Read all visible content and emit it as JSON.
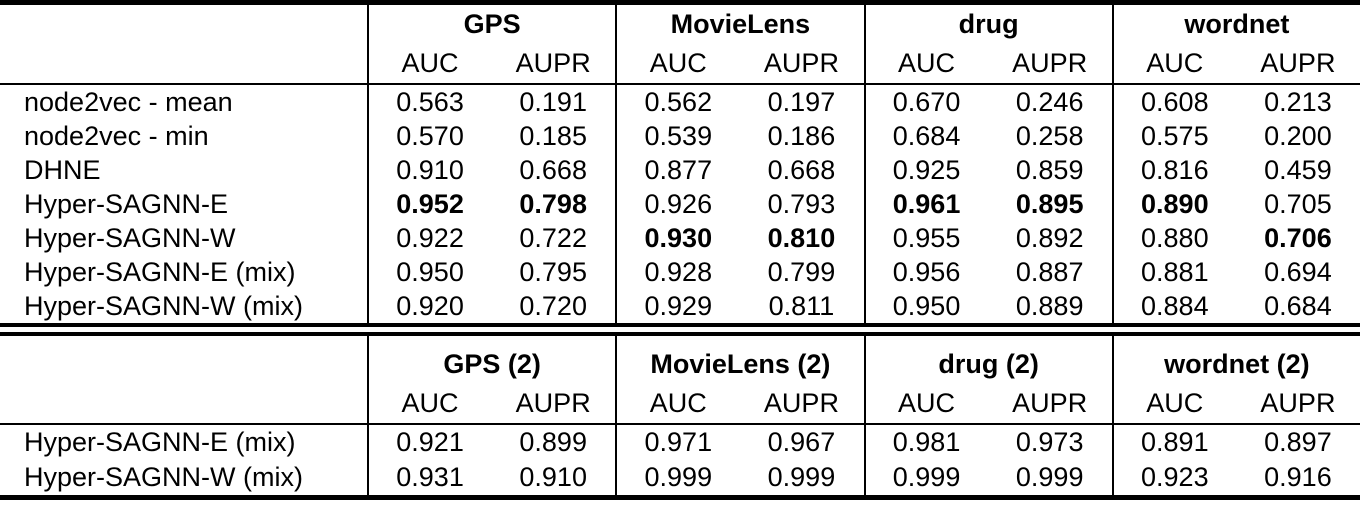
{
  "page": {
    "background": "#ffffff",
    "text_color": "#000000",
    "rule_color": "#000000"
  },
  "tables": [
    {
      "title": "results-table-single",
      "column_groups": [
        "GPS",
        "MovieLens",
        "drug",
        "wordnet"
      ],
      "metric_labels": [
        "AUC",
        "AUPR"
      ],
      "rows": [
        {
          "method": "node2vec - mean",
          "values": [
            "0.563",
            "0.191",
            "0.562",
            "0.197",
            "0.670",
            "0.246",
            "0.608",
            "0.213"
          ],
          "bold": [
            false,
            false,
            false,
            false,
            false,
            false,
            false,
            false
          ]
        },
        {
          "method": "node2vec - min",
          "values": [
            "0.570",
            "0.185",
            "0.539",
            "0.186",
            "0.684",
            "0.258",
            "0.575",
            "0.200"
          ],
          "bold": [
            false,
            false,
            false,
            false,
            false,
            false,
            false,
            false
          ]
        },
        {
          "method": "DHNE",
          "values": [
            "0.910",
            "0.668",
            "0.877",
            "0.668",
            "0.925",
            "0.859",
            "0.816",
            "0.459"
          ],
          "bold": [
            false,
            false,
            false,
            false,
            false,
            false,
            false,
            false
          ]
        },
        {
          "method": "Hyper-SAGNN-E",
          "values": [
            "0.952",
            "0.798",
            "0.926",
            "0.793",
            "0.961",
            "0.895",
            "0.890",
            "0.705"
          ],
          "bold": [
            true,
            true,
            false,
            false,
            true,
            true,
            true,
            false
          ]
        },
        {
          "method": "Hyper-SAGNN-W",
          "values": [
            "0.922",
            "0.722",
            "0.930",
            "0.810",
            "0.955",
            "0.892",
            "0.880",
            "0.706"
          ],
          "bold": [
            false,
            false,
            true,
            true,
            false,
            false,
            false,
            true
          ]
        },
        {
          "method": "Hyper-SAGNN-E (mix)",
          "values": [
            "0.950",
            "0.795",
            "0.928",
            "0.799",
            "0.956",
            "0.887",
            "0.881",
            "0.694"
          ],
          "bold": [
            false,
            false,
            false,
            false,
            false,
            false,
            false,
            false
          ]
        },
        {
          "method": "Hyper-SAGNN-W (mix)",
          "values": [
            "0.920",
            "0.720",
            "0.929",
            "0.811",
            "0.950",
            "0.889",
            "0.884",
            "0.684"
          ],
          "bold": [
            false,
            false,
            false,
            false,
            false,
            false,
            false,
            false
          ]
        }
      ]
    },
    {
      "title": "results-table-pairwise",
      "column_groups": [
        "GPS (2)",
        "MovieLens (2)",
        "drug (2)",
        "wordnet (2)"
      ],
      "metric_labels": [
        "AUC",
        "AUPR"
      ],
      "rows": [
        {
          "method": "Hyper-SAGNN-E (mix)",
          "values": [
            "0.921",
            "0.899",
            "0.971",
            "0.967",
            "0.981",
            "0.973",
            "0.891",
            "0.897"
          ],
          "bold": [
            false,
            false,
            false,
            false,
            false,
            false,
            false,
            false
          ]
        },
        {
          "method": "Hyper-SAGNN-W (mix)",
          "values": [
            "0.931",
            "0.910",
            "0.999",
            "0.999",
            "0.999",
            "0.999",
            "0.923",
            "0.916"
          ],
          "bold": [
            false,
            false,
            false,
            false,
            false,
            false,
            false,
            false
          ]
        }
      ]
    }
  ]
}
